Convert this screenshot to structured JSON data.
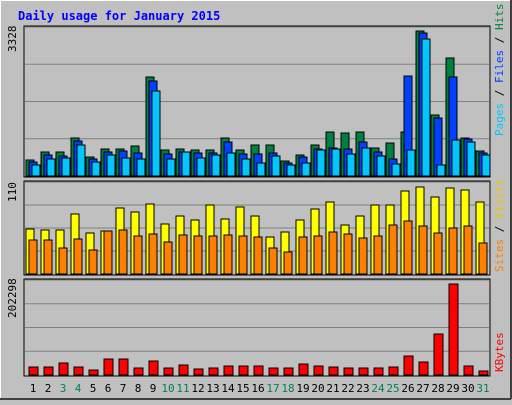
{
  "chart_data": [
    {
      "type": "bar",
      "panel": "hits-files-pages",
      "title": "Daily usage for January 2015",
      "ylabel_parts": [
        "Pages",
        "Files",
        "Hits"
      ],
      "ymax_label": "3328",
      "ylim": [
        0,
        3328
      ],
      "categories": [
        "1",
        "2",
        "3",
        "4",
        "5",
        "6",
        "7",
        "8",
        "9",
        "10",
        "11",
        "12",
        "13",
        "14",
        "15",
        "16",
        "17",
        "18",
        "19",
        "20",
        "21",
        "22",
        "23",
        "24",
        "25",
        "26",
        "27",
        "28",
        "29",
        "30",
        "31"
      ],
      "weekend_days": [
        "3",
        "4",
        "10",
        "11",
        "17",
        "18",
        "24",
        "25",
        "31"
      ],
      "series": [
        {
          "name": "Hits",
          "color": "#008040",
          "values": [
            360,
            540,
            540,
            870,
            440,
            620,
            620,
            680,
            2270,
            590,
            610,
            590,
            590,
            880,
            590,
            720,
            710,
            340,
            480,
            720,
            1010,
            990,
            1010,
            640,
            760,
            1010,
            3330,
            1390,
            2700,
            880,
            580
          ]
        },
        {
          "name": "Files",
          "color": "#0040ff",
          "values": [
            310,
            480,
            470,
            800,
            390,
            560,
            570,
            530,
            2170,
            500,
            560,
            530,
            520,
            770,
            500,
            500,
            520,
            300,
            430,
            610,
            640,
            620,
            770,
            550,
            400,
            2290,
            3280,
            1320,
            2280,
            850,
            530
          ]
        },
        {
          "name": "Pages",
          "color": "#00c8ff",
          "values": [
            260,
            380,
            420,
            720,
            330,
            480,
            420,
            390,
            1950,
            380,
            540,
            410,
            480,
            520,
            400,
            300,
            450,
            250,
            290,
            590,
            610,
            510,
            640,
            460,
            280,
            600,
            3150,
            260,
            820,
            790,
            490
          ]
        }
      ]
    },
    {
      "type": "bar",
      "panel": "visits-sites",
      "ylabel_parts": [
        "Sites",
        "Visits"
      ],
      "ymax_label": "110",
      "ylim": [
        0,
        110
      ],
      "categories": [
        "1",
        "2",
        "3",
        "4",
        "5",
        "6",
        "7",
        "8",
        "9",
        "10",
        "11",
        "12",
        "13",
        "14",
        "15",
        "16",
        "17",
        "18",
        "19",
        "20",
        "21",
        "22",
        "23",
        "24",
        "25",
        "26",
        "27",
        "28",
        "29",
        "30",
        "31"
      ],
      "series": [
        {
          "name": "Visits",
          "color": "#ffff00",
          "values": [
            56,
            55,
            55,
            75,
            51,
            54,
            82,
            77,
            87,
            62,
            72,
            68,
            86,
            69,
            84,
            72,
            46,
            53,
            68,
            81,
            90,
            61,
            73,
            86,
            86,
            104,
            109,
            96,
            108,
            105,
            90
          ]
        },
        {
          "name": "Sites",
          "color": "#ff8000",
          "values": [
            42,
            42,
            33,
            44,
            30,
            54,
            55,
            47,
            50,
            40,
            49,
            47,
            48,
            49,
            48,
            46,
            33,
            27,
            46,
            47,
            52,
            50,
            45,
            47,
            61,
            66,
            60,
            51,
            57,
            60,
            39
          ]
        }
      ]
    },
    {
      "type": "bar",
      "panel": "kbytes",
      "ylabel_parts": [
        "KBytes"
      ],
      "ymax_label": "202298",
      "ylim": [
        0,
        202298
      ],
      "categories": [
        "1",
        "2",
        "3",
        "4",
        "5",
        "6",
        "7",
        "8",
        "9",
        "10",
        "11",
        "12",
        "13",
        "14",
        "15",
        "16",
        "17",
        "18",
        "19",
        "20",
        "21",
        "22",
        "23",
        "24",
        "25",
        "26",
        "27",
        "28",
        "29",
        "30",
        "31"
      ],
      "series": [
        {
          "name": "KBytes",
          "color": "#ff0000",
          "values": [
            17000,
            17000,
            27000,
            17000,
            12000,
            35000,
            36000,
            15000,
            31000,
            16000,
            22000,
            14000,
            15000,
            19000,
            21000,
            21000,
            15000,
            15000,
            25000,
            20000,
            18000,
            15000,
            15000,
            15000,
            17000,
            43000,
            28000,
            91000,
            202298,
            19000,
            10000
          ]
        }
      ]
    }
  ]
}
